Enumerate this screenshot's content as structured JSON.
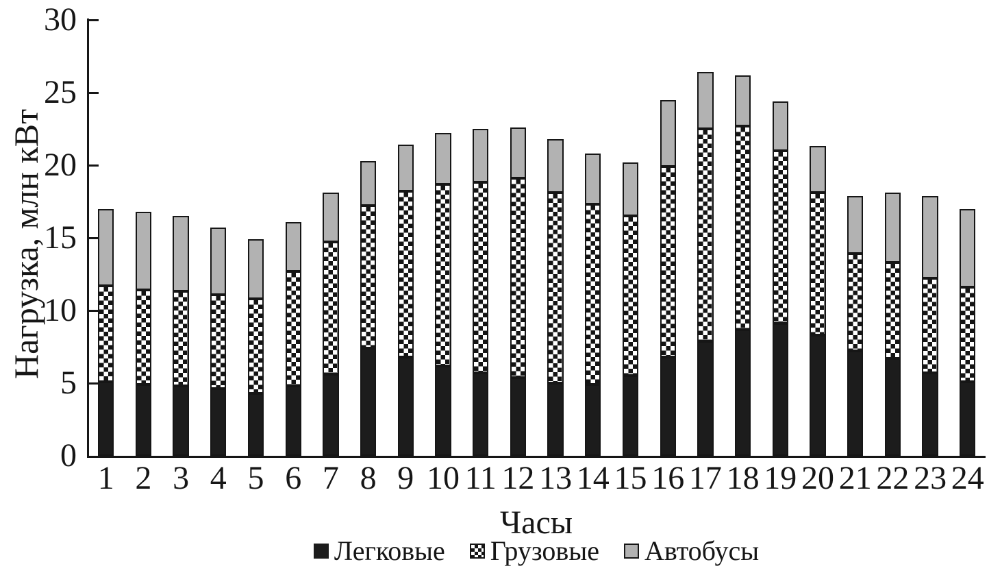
{
  "chart_data": {
    "type": "bar",
    "stacked": true,
    "title": "",
    "xlabel": "Часы",
    "ylabel": "Нагрузка, млн кВт",
    "ylim": [
      0,
      30
    ],
    "yticks": [
      0,
      5,
      10,
      15,
      20,
      25,
      30
    ],
    "grid": false,
    "legend_position": "bottom",
    "categories": [
      1,
      2,
      3,
      4,
      5,
      6,
      7,
      8,
      9,
      10,
      11,
      12,
      13,
      14,
      15,
      16,
      17,
      18,
      19,
      20,
      21,
      22,
      23,
      24
    ],
    "series": [
      {
        "name": "Легковые",
        "style": "solid-black",
        "color": "#1c1c1c",
        "values": [
          5.1,
          4.9,
          4.8,
          4.6,
          4.3,
          4.8,
          5.6,
          7.4,
          6.8,
          6.2,
          5.7,
          5.4,
          5.0,
          4.9,
          5.5,
          6.8,
          7.9,
          8.7,
          9.1,
          8.3,
          7.2,
          6.7,
          5.7,
          5.1
        ]
      },
      {
        "name": "Грузовые",
        "style": "checkerboard",
        "color": "#141414",
        "values": [
          6.6,
          6.5,
          6.5,
          6.5,
          6.5,
          7.9,
          9.1,
          9.8,
          11.4,
          12.5,
          13.1,
          13.7,
          13.1,
          12.4,
          11.0,
          13.1,
          14.6,
          14.0,
          11.9,
          9.8,
          6.7,
          6.6,
          6.5,
          6.5
        ]
      },
      {
        "name": "Автобусы",
        "style": "solid-gray",
        "color": "#b2b2b2",
        "values": [
          5.3,
          5.4,
          5.2,
          4.6,
          4.1,
          3.4,
          3.4,
          3.1,
          3.2,
          3.5,
          3.7,
          3.5,
          3.7,
          3.5,
          3.7,
          4.6,
          3.9,
          3.5,
          3.4,
          3.2,
          4.0,
          4.8,
          5.7,
          5.4
        ]
      }
    ]
  },
  "colors": {
    "ink": "#161616",
    "gray_fill": "#b2b2b2",
    "background": "#ffffff"
  }
}
